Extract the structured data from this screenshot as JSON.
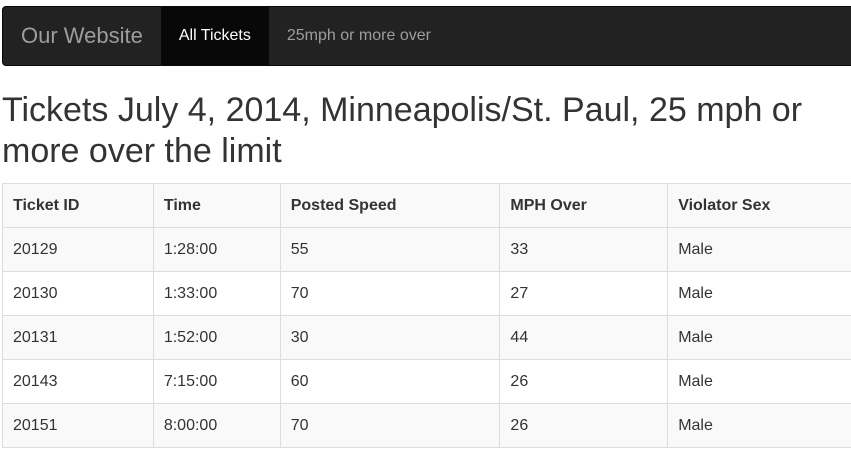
{
  "navbar": {
    "brand": "Our Website",
    "items": [
      {
        "label": "All Tickets",
        "active": true
      },
      {
        "label": "25mph or more over",
        "active": false
      }
    ]
  },
  "page": {
    "title": "Tickets July 4, 2014, Minneapolis/St. Paul, 25 mph or more over the limit"
  },
  "table": {
    "columns": [
      "Ticket ID",
      "Time",
      "Posted Speed",
      "MPH Over",
      "Violator Sex"
    ],
    "rows": [
      [
        "20129",
        "1:28:00",
        "55",
        "33",
        "Male"
      ],
      [
        "20130",
        "1:33:00",
        "70",
        "27",
        "Male"
      ],
      [
        "20131",
        "1:52:00",
        "30",
        "44",
        "Male"
      ],
      [
        "20143",
        "7:15:00",
        "60",
        "26",
        "Male"
      ],
      [
        "20151",
        "8:00:00",
        "70",
        "26",
        "Male"
      ]
    ]
  },
  "colors": {
    "navbar_bg": "#222222",
    "navbar_active_bg": "#080808",
    "navbar_text": "#9d9d9d",
    "table_stripe": "#f9f9f9"
  }
}
